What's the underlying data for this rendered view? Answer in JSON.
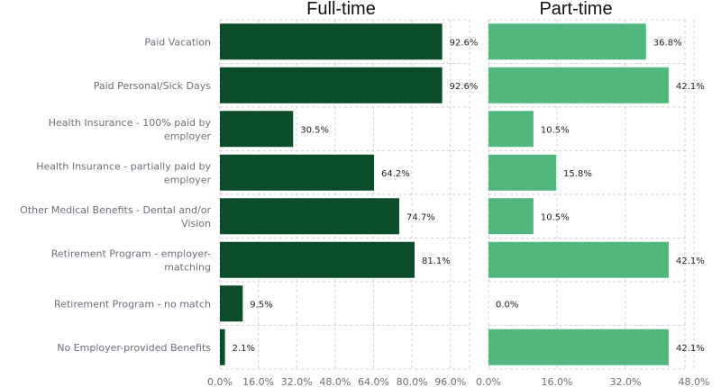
{
  "chart_data": {
    "type": "bar",
    "orientation": "horizontal",
    "categories": [
      "Paid Vacation",
      "Paid Personal/Sick Days",
      "Health Insurance - 100% paid by employer",
      "Health Insurance - partially paid by employer",
      "Other Medical Benefits - Dental and/or Vision",
      "Retirement Program - employer-matching",
      "Retirement Program - no match",
      "No Employer-provided Benefits"
    ],
    "category_lines": [
      [
        "Paid Vacation"
      ],
      [
        "Paid Personal/Sick Days"
      ],
      [
        "Health Insurance - 100% paid by",
        "employer"
      ],
      [
        "Health Insurance - partially paid by",
        "employer"
      ],
      [
        "Other Medical Benefits - Dental and/or",
        "Vision"
      ],
      [
        "Retirement Program - employer-",
        "matching"
      ],
      [
        "Retirement Program - no match"
      ],
      [
        "No Employer-provided Benefits"
      ]
    ],
    "panels": [
      {
        "title": "Full-time",
        "values": [
          92.6,
          92.6,
          30.5,
          64.2,
          74.7,
          81.1,
          9.5,
          2.1
        ],
        "labels": [
          "92.6%",
          "92.6%",
          "30.5%",
          "64.2%",
          "74.7%",
          "81.1%",
          "9.5%",
          "2.1%"
        ],
        "xlim": [
          0,
          104
        ],
        "ticks": [
          "0.0%",
          "16.0%",
          "32.0%",
          "48.0%",
          "64.0%",
          "80.0%",
          "96.0%"
        ],
        "tick_values": [
          0,
          16,
          32,
          48,
          64,
          80,
          96
        ],
        "color": "#0b4c29"
      },
      {
        "title": "Part-time",
        "values": [
          36.8,
          42.1,
          10.5,
          15.8,
          10.5,
          42.1,
          0.0,
          42.1
        ],
        "labels": [
          "36.8%",
          "42.1%",
          "10.5%",
          "15.8%",
          "10.5%",
          "42.1%",
          "0.0%",
          "42.1%"
        ],
        "xlim": [
          0,
          48
        ],
        "ticks": [
          "0.0%",
          "16.0%",
          "32.0%",
          "48.0%"
        ],
        "tick_values": [
          0,
          16,
          32,
          48
        ],
        "color": "#52b77f"
      }
    ],
    "grid": true,
    "xlabel": "",
    "ylabel": ""
  }
}
